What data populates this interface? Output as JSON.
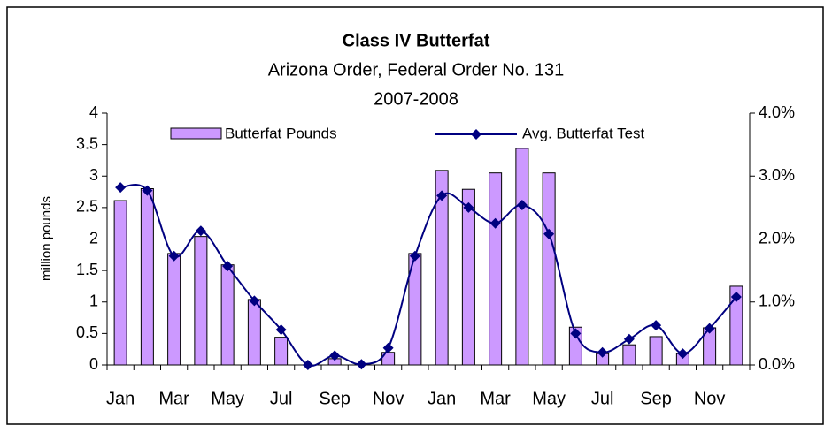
{
  "chart_data": {
    "type": "bar-line",
    "title": "Class IV Butterfat",
    "subtitle": "Arizona Order, Federal Order No. 131",
    "subtitle2": "2007-2008",
    "y_label": "million pounds",
    "categories": [
      "Jan",
      null,
      "Mar",
      null,
      "May",
      null,
      "Jul",
      null,
      "Sep",
      null,
      "Nov",
      null,
      "Jan",
      null,
      "Mar",
      null,
      "May",
      null,
      "Jul",
      null,
      "Sep",
      null,
      "Nov",
      null
    ],
    "series": [
      {
        "name": "Butterfat Pounds",
        "type": "bar",
        "color": "#cc99ff",
        "values": [
          2.61,
          2.8,
          1.77,
          2.04,
          1.59,
          1.04,
          0.44,
          0.0,
          0.1,
          0.02,
          0.2,
          1.77,
          3.09,
          2.79,
          3.05,
          3.44,
          3.05,
          0.6,
          0.18,
          0.32,
          0.45,
          0.18,
          0.59,
          1.25
        ]
      },
      {
        "name": "Avg. Butterfat Test",
        "type": "line",
        "axis": "y2",
        "color": "#000080",
        "values": [
          2.82,
          2.77,
          1.73,
          2.13,
          1.57,
          1.02,
          0.56,
          0.0,
          0.15,
          0.01,
          0.27,
          1.73,
          2.69,
          2.5,
          2.25,
          2.54,
          2.08,
          0.5,
          0.2,
          0.41,
          0.63,
          0.18,
          0.58,
          1.08
        ]
      }
    ],
    "ylim": [
      0,
      4
    ],
    "yticks": [
      0,
      0.5,
      1,
      1.5,
      2,
      2.5,
      3,
      3.5,
      4
    ],
    "y2lim": [
      0,
      4
    ],
    "y2ticks": [
      {
        "value": 0,
        "label": "0.0%"
      },
      {
        "value": 1,
        "label": "1.0%"
      },
      {
        "value": 2,
        "label": "2.0%"
      },
      {
        "value": 3,
        "label": "3.0%"
      },
      {
        "value": 4,
        "label": "4.0%"
      }
    ],
    "legend": "top"
  }
}
